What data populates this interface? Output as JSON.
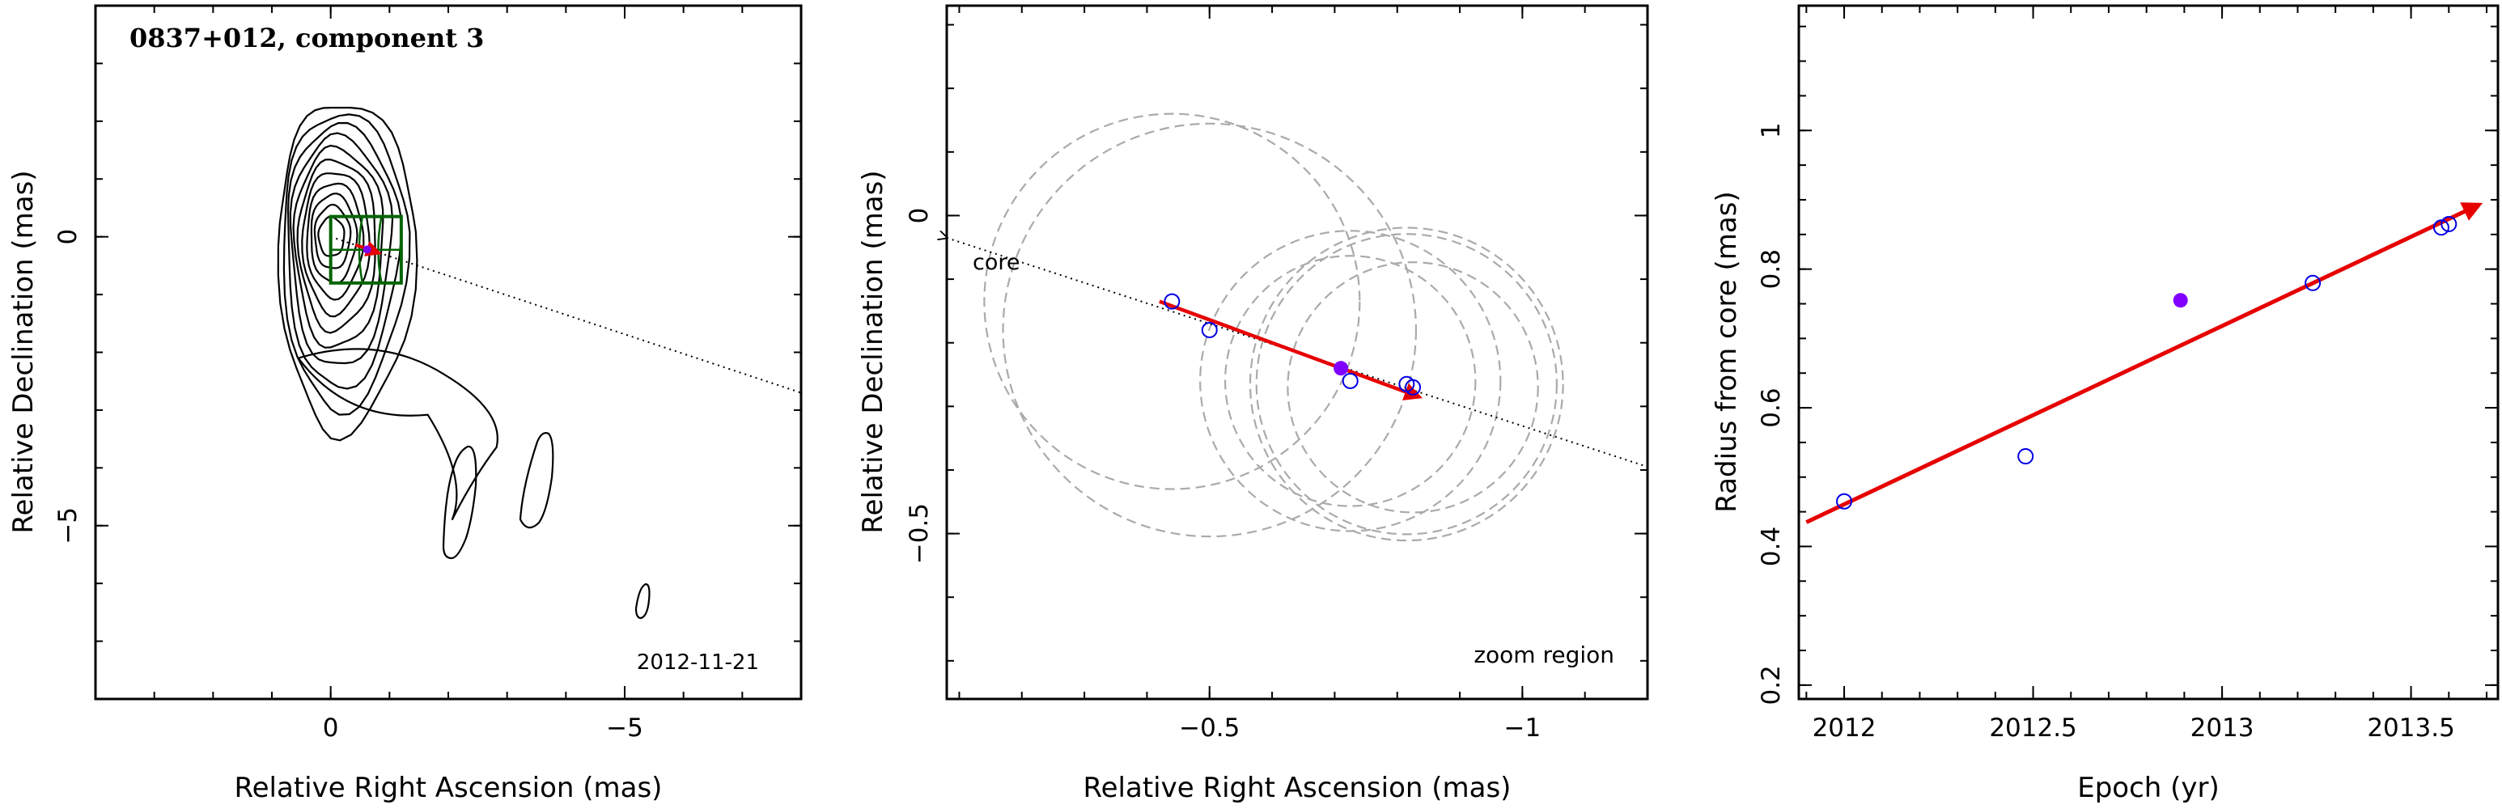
{
  "chart_data": [
    {
      "type": "contour",
      "title": "0837+012, component 3",
      "xlabel": "Relative Right Ascension (mas)",
      "ylabel": "Relative Declination (mas)",
      "xlim": [
        4,
        -8
      ],
      "ylim": [
        -8,
        4
      ],
      "xticks": [
        0,
        -5
      ],
      "xtick_labels": [
        "0",
        "−5"
      ],
      "yticks": [
        0,
        -5
      ],
      "ytick_labels": [
        "0",
        "−5"
      ],
      "annotation": "2012-11-21",
      "contour_levels": 11,
      "zoom_box": {
        "x": [
          0,
          -1.2
        ],
        "y": [
          0.35,
          -0.8
        ]
      },
      "trajectory": {
        "from": [
          0,
          0
        ],
        "to": [
          -8,
          -2.7
        ]
      },
      "motion_vector": {
        "from": [
          -0.42,
          -0.14
        ],
        "to": [
          -0.82,
          -0.28
        ]
      },
      "component_position": [
        -0.62,
        -0.22
      ],
      "colors": {
        "contour": "#000000",
        "box": "#006400",
        "vector": "#e60000",
        "point": "#8000ff"
      }
    },
    {
      "type": "scatter",
      "title": "",
      "xlabel": "Relative Right Ascension (mas)",
      "ylabel": "Relative Declination (mas)",
      "xlim": [
        -0.08,
        -1.2
      ],
      "ylim": [
        -0.76,
        0.33
      ],
      "xticks": [
        -0.5,
        -1
      ],
      "xtick_labels": [
        "−0.5",
        "−1"
      ],
      "yticks": [
        0,
        -0.5
      ],
      "ytick_labels": [
        "0",
        "−0.5"
      ],
      "annotation": "zoom region",
      "core_label": "core",
      "series": [
        {
          "marker": "open-circle",
          "points": [
            [
              -0.44,
              -0.135
            ],
            [
              -0.5,
              -0.18
            ],
            [
              -0.725,
              -0.26
            ],
            [
              -0.815,
              -0.265
            ],
            [
              -0.825,
              -0.27
            ]
          ]
        },
        {
          "marker": "filled-circle",
          "points": [
            [
              -0.71,
              -0.24
            ]
          ]
        }
      ],
      "circles": [
        {
          "center": [
            -0.44,
            -0.135
          ],
          "r": 0.3
        },
        {
          "center": [
            -0.5,
            -0.18
          ],
          "r": 0.33
        },
        {
          "center": [
            -0.725,
            -0.26
          ],
          "r": 0.24
        },
        {
          "center": [
            -0.725,
            -0.26
          ],
          "r": 0.2
        },
        {
          "center": [
            -0.815,
            -0.265
          ],
          "r": 0.24
        },
        {
          "center": [
            -0.825,
            -0.27
          ],
          "r": 0.2
        },
        {
          "center": [
            -0.815,
            -0.265
          ],
          "r": 0.25
        }
      ],
      "trajectory": {
        "from": [
          -0.08,
          -0.035
        ],
        "to": [
          -1.2,
          -0.395
        ]
      },
      "motion_vector": {
        "from": [
          -0.42,
          -0.135
        ],
        "to": [
          -0.835,
          -0.285
        ]
      },
      "colors": {
        "points": "#0000e6",
        "filled": "#8000ff",
        "circles": "#aaaaaa",
        "vector": "#e60000"
      }
    },
    {
      "type": "scatter",
      "title": "",
      "xlabel": "Epoch (yr)",
      "ylabel": "Radius from core (mas)",
      "xlim": [
        2011.88,
        2013.73
      ],
      "ylim": [
        0.18,
        1.18
      ],
      "xticks": [
        2012,
        2012.5,
        2013,
        2013.5
      ],
      "xtick_labels": [
        "2012",
        "2012.5",
        "2013",
        "2013.5"
      ],
      "yticks": [
        0.2,
        0.4,
        0.6,
        0.8,
        1
      ],
      "ytick_labels": [
        "0.2",
        "0.4",
        "0.6",
        "0.8",
        "1"
      ],
      "series": [
        {
          "marker": "open-circle",
          "points": [
            [
              2012.0,
              0.465
            ],
            [
              2012.48,
              0.53
            ],
            [
              2013.24,
              0.78
            ],
            [
              2013.58,
              0.86
            ],
            [
              2013.6,
              0.865
            ]
          ]
        },
        {
          "marker": "filled-circle",
          "points": [
            [
              2012.89,
              0.755
            ]
          ]
        }
      ],
      "fit_line": {
        "from": [
          2011.9,
          0.435
        ],
        "to": [
          2013.68,
          0.893
        ]
      },
      "colors": {
        "points": "#0000e6",
        "filled": "#8000ff",
        "fit": "#e60000"
      }
    }
  ]
}
